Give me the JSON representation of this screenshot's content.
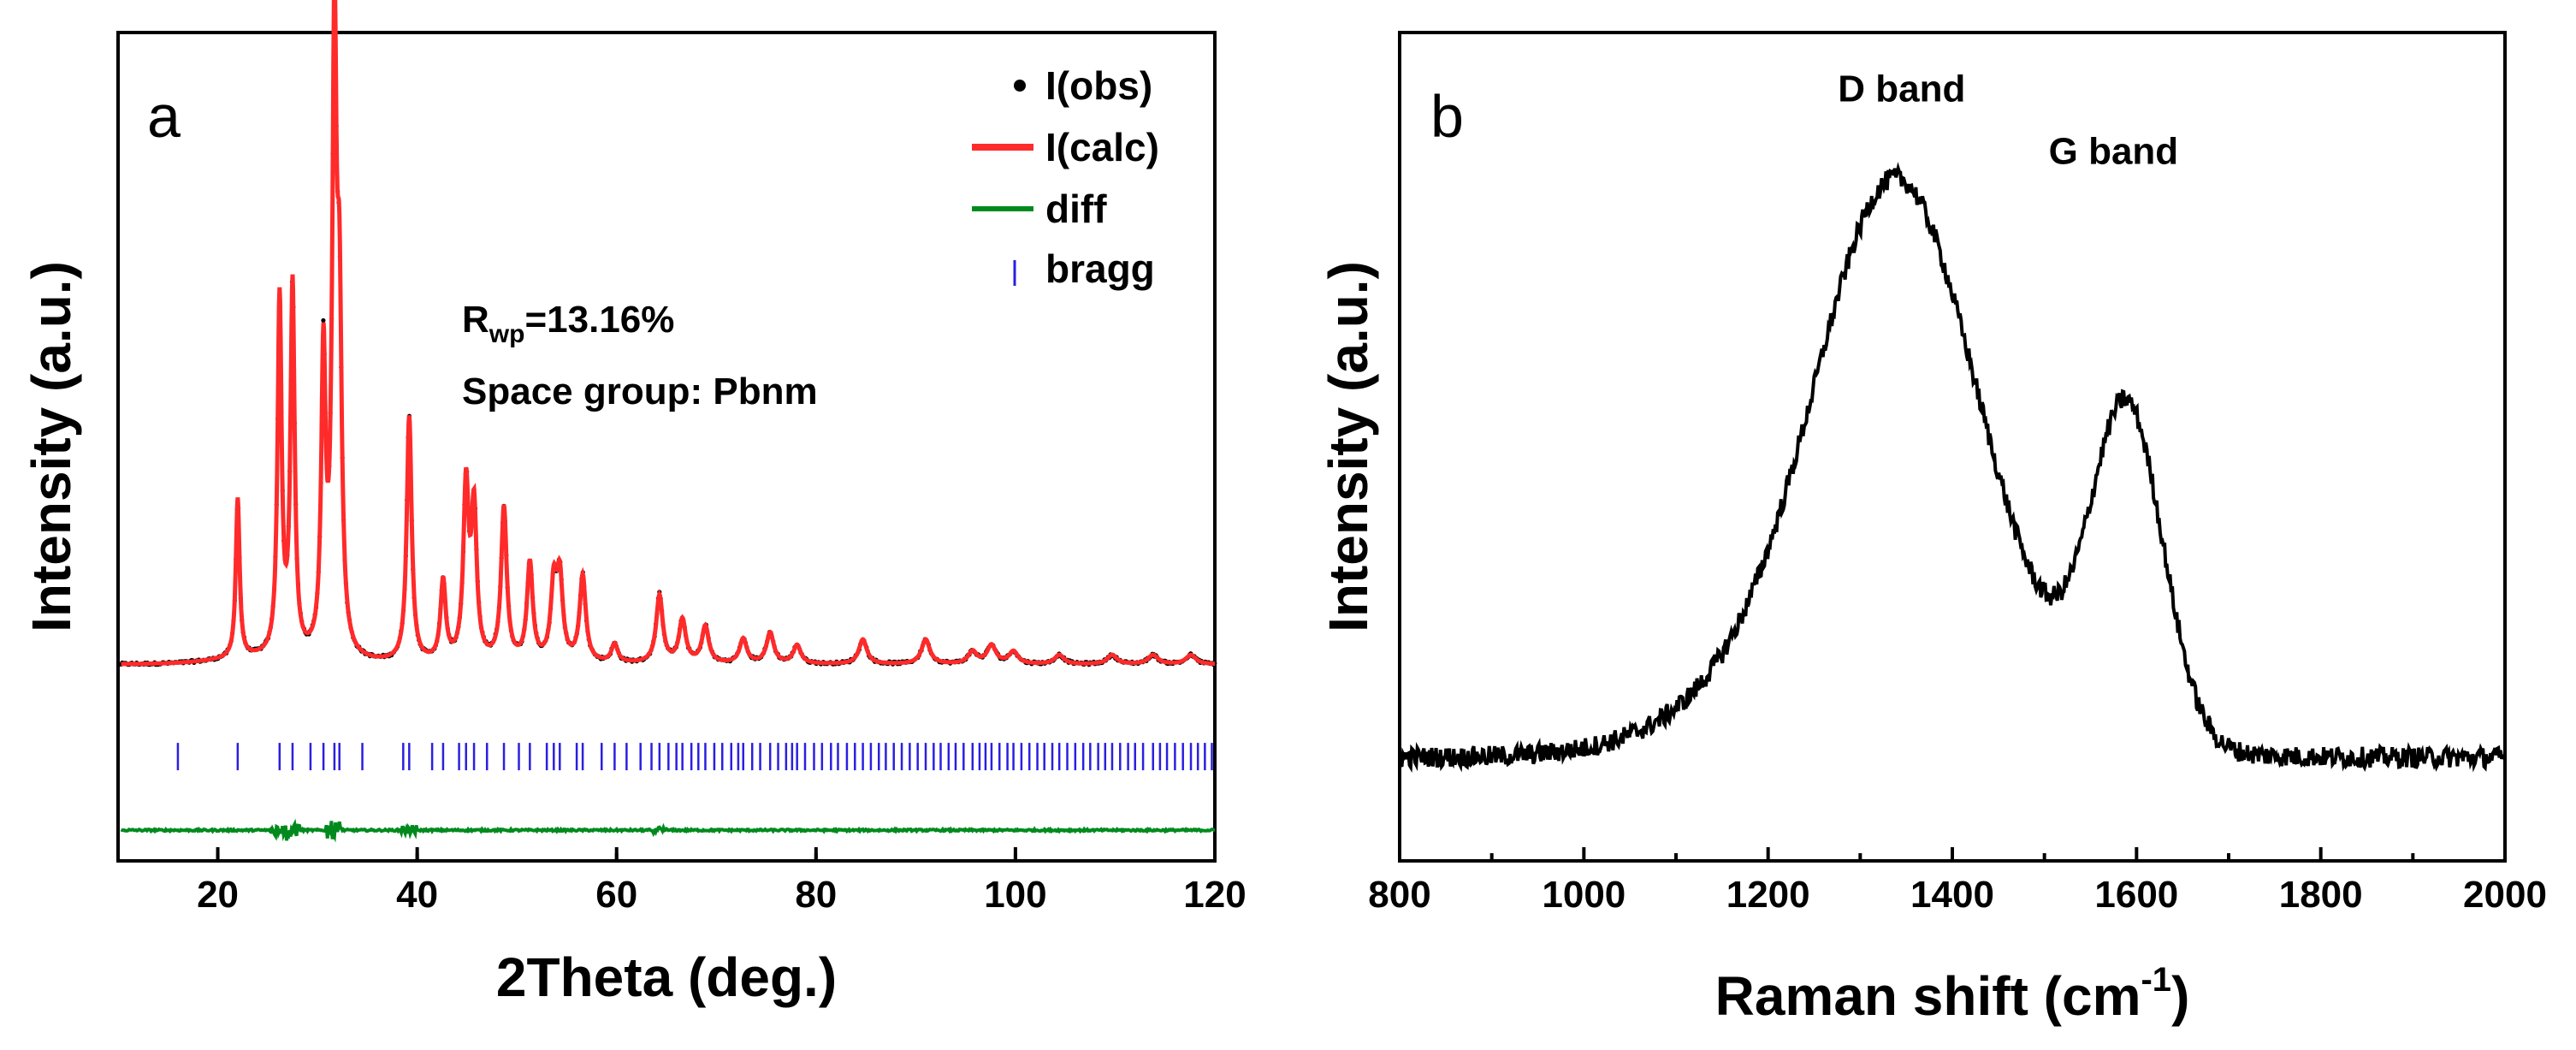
{
  "figure": {
    "colors": {
      "obs": "#000000",
      "calc": "#ff2a2a",
      "diff": "#008a1e",
      "bragg": "#2a1fe0",
      "raman": "#000000"
    }
  },
  "chart_data": [
    {
      "panel": "a",
      "type": "line",
      "xlabel": "2Theta (deg.)",
      "ylabel": "Intensity (a.u.)",
      "xlim": [
        10,
        120
      ],
      "xticks": [
        20,
        40,
        60,
        80,
        100,
        120
      ],
      "xtick_labels": [
        "20",
        "40",
        "60",
        "80",
        "100",
        "120"
      ],
      "ylim": [
        -0.3,
        1.05
      ],
      "background": 0.02,
      "legend": {
        "position": "top-right",
        "entries": [
          {
            "label": "I(obs)",
            "style": "marker"
          },
          {
            "label": "I(calc)",
            "style": "line"
          },
          {
            "label": "diff",
            "style": "line"
          },
          {
            "label": "bragg",
            "style": "tick"
          }
        ]
      },
      "annotations": {
        "rwp_prefix": "R",
        "rwp_sub": "wp",
        "rwp_value": "=13.16%",
        "space_group": "Space group: Pbnm"
      },
      "peaks": [
        {
          "x": 22.0,
          "y": 0.26
        },
        {
          "x": 26.2,
          "y": 0.58
        },
        {
          "x": 27.5,
          "y": 0.6
        },
        {
          "x": 30.6,
          "y": 0.48
        },
        {
          "x": 31.7,
          "y": 0.98
        },
        {
          "x": 32.2,
          "y": 0.5
        },
        {
          "x": 39.2,
          "y": 0.4
        },
        {
          "x": 42.6,
          "y": 0.13
        },
        {
          "x": 44.9,
          "y": 0.28
        },
        {
          "x": 45.7,
          "y": 0.24
        },
        {
          "x": 48.7,
          "y": 0.25
        },
        {
          "x": 51.3,
          "y": 0.16
        },
        {
          "x": 53.7,
          "y": 0.12
        },
        {
          "x": 54.3,
          "y": 0.13
        },
        {
          "x": 56.6,
          "y": 0.14
        },
        {
          "x": 59.8,
          "y": 0.03
        },
        {
          "x": 64.3,
          "y": 0.11
        },
        {
          "x": 66.6,
          "y": 0.07
        },
        {
          "x": 68.9,
          "y": 0.06
        },
        {
          "x": 72.7,
          "y": 0.04
        },
        {
          "x": 75.4,
          "y": 0.05
        },
        {
          "x": 78.1,
          "y": 0.03
        },
        {
          "x": 84.7,
          "y": 0.04
        },
        {
          "x": 91.0,
          "y": 0.04
        },
        {
          "x": 95.7,
          "y": 0.02
        },
        {
          "x": 97.6,
          "y": 0.03
        },
        {
          "x": 99.8,
          "y": 0.02
        },
        {
          "x": 104.4,
          "y": 0.015
        },
        {
          "x": 109.7,
          "y": 0.015
        },
        {
          "x": 113.8,
          "y": 0.015
        },
        {
          "x": 117.6,
          "y": 0.015
        }
      ],
      "bragg_positions": [
        16.0,
        22.0,
        26.2,
        27.5,
        29.3,
        30.6,
        31.7,
        32.2,
        34.5,
        38.6,
        39.2,
        41.5,
        42.6,
        44.2,
        44.9,
        45.7,
        47.0,
        48.7,
        50.2,
        51.3,
        53.0,
        53.7,
        54.3,
        56.0,
        56.6,
        58.5,
        59.8,
        61.0,
        62.4,
        63.5,
        64.3,
        65.2,
        66.0,
        66.6,
        67.5,
        68.2,
        68.9,
        69.8,
        70.6,
        71.5,
        72.2,
        72.7,
        73.6,
        74.4,
        75.4,
        76.2,
        77.0,
        77.6,
        78.1,
        78.9,
        79.8,
        80.6,
        81.5,
        82.2,
        83.1,
        83.9,
        84.7,
        85.5,
        86.3,
        87.0,
        87.8,
        88.6,
        89.4,
        90.2,
        91.0,
        91.8,
        92.5,
        93.3,
        94.0,
        94.8,
        95.7,
        96.4,
        97.0,
        97.6,
        98.4,
        99.2,
        99.8,
        100.6,
        101.4,
        102.2,
        102.9,
        103.7,
        104.4,
        105.2,
        106.0,
        106.8,
        107.5,
        108.3,
        109.0,
        109.7,
        110.5,
        111.3,
        112.0,
        112.8,
        113.8,
        114.5,
        115.2,
        116.0,
        116.8,
        117.6,
        118.3,
        119.0,
        119.7
      ],
      "bragg_level": -0.13,
      "diff_level": -0.25,
      "diff_features": [
        {
          "x": 26.2,
          "amp": 0.01
        },
        {
          "x": 27.5,
          "amp": 0.012
        },
        {
          "x": 31.7,
          "amp": 0.015
        },
        {
          "x": 39.2,
          "amp": 0.008
        },
        {
          "x": 64.3,
          "amp": 0.005
        }
      ]
    },
    {
      "panel": "b",
      "type": "line",
      "xlabel_main": "Raman shift (cm",
      "xlabel_sup": "-1",
      "xlabel_close": ")",
      "ylabel": "Intensity (a.u.)",
      "xlim": [
        800,
        2000
      ],
      "xticks": [
        800,
        1000,
        1200,
        1400,
        1600,
        1800,
        2000
      ],
      "xtick_labels": [
        "800",
        "1000",
        "1200",
        "1400",
        "1600",
        "1800",
        "2000"
      ],
      "ylim": [
        -0.15,
        1.05
      ],
      "baseline": 0.0,
      "bands": [
        {
          "name": "D band",
          "center": 1340,
          "height": 0.56,
          "width": 115
        },
        {
          "name": "G band",
          "center": 1590,
          "height": 0.47,
          "width": 55
        },
        {
          "name": "broad",
          "center": 1330,
          "height": 0.28,
          "width": 190
        }
      ],
      "labels": [
        {
          "text": "D band",
          "x": 1345,
          "y": 0.95
        },
        {
          "text": "G band",
          "x": 1575,
          "y": 0.86
        }
      ],
      "noise": 0.015
    }
  ]
}
